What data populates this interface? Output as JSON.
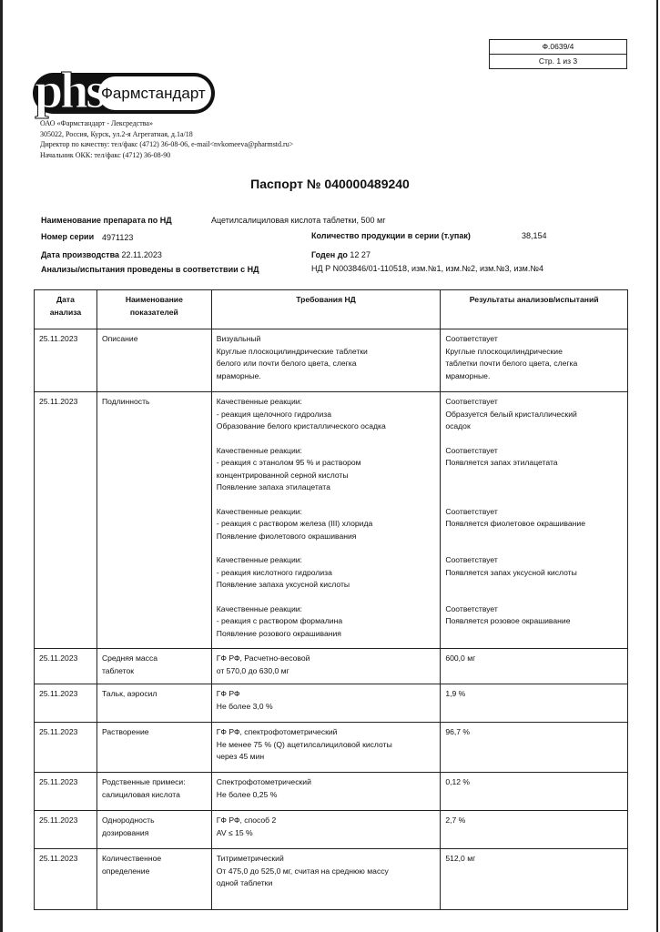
{
  "form": {
    "code": "Ф.0639/4",
    "page": "Стр. 1 из 3"
  },
  "logo": {
    "mark": "phs",
    "name": "Фармстандарт"
  },
  "company": {
    "lines": [
      "ОАО «Фармстандарт - Лексредства»",
      "305022, Россия, Курск, ул.2-я Агрегатная, д.1а/18",
      "Директор по качеству: тел/факс (4712) 36-08-06, e-mail<nvkomeeva@pharmstd.ru>",
      "Начальник ОКК: тел/факс (4712) 36-08-90"
    ]
  },
  "title": "Паспорт № 040000489240",
  "info": {
    "drug_label": "Наименование препарата по НД",
    "drug_value": "Ацетилсалициловая кислота таблетки, 500 мг",
    "series_label": "Номер серии",
    "series_value": "4971123",
    "qty_label": "Количество продукции в серии (т.упак)",
    "qty_value": "38,154",
    "prod_date_label": "Дата производства",
    "prod_date_value": "22.11.2023",
    "expiry_label": "Годен до",
    "expiry_value": "12 27",
    "nd_label": "Анализы/испытания проведены в соответствии с НД",
    "nd_value": "НД Р N003846/01-110518, изм.№1, изм.№2, изм.№3, изм.№4"
  },
  "table": {
    "headers": [
      "Дата\nанализа",
      "Наименование\nпоказателей",
      "Требования НД",
      "Результаты анализов/испытаний"
    ],
    "rows": [
      {
        "date": "25.11.2023",
        "name": [
          "Описание"
        ],
        "blocks": [
          {
            "req": [
              "Визуальный",
              "Круглые плоскоцилиндрические таблетки",
              "белого или почти белого цвета, слегка",
              "мраморные."
            ],
            "res": [
              "Соответствует",
              "Круглые плоскоцилиндрические",
              "таблетки почти белого цвета, слегка",
              "мраморные."
            ]
          }
        ]
      },
      {
        "date": "25.11.2023",
        "name": [
          "Подлинность"
        ],
        "blocks": [
          {
            "req": [
              "Качественные реакции:",
              "- реакция щелочного гидролиза",
              "Образование белого кристаллического осадка"
            ],
            "res": [
              "Соответствует",
              "Образуется белый кристаллический",
              "осадок"
            ]
          },
          {
            "req": [
              "Качественные реакции:",
              "- реакция с этанолом 95 % и раствором",
              "концентрированной серной кислоты",
              "Появление запаха этилацетата"
            ],
            "res": [
              "Соответствует",
              "Появляется запах этилацетата"
            ]
          },
          {
            "req": [
              "Качественные реакции:",
              "- реакция с раствором железа (III) хлорида",
              "Появление фиолетового окрашивания"
            ],
            "res": [
              "Соответствует",
              "Появляется фиолетовое окрашивание"
            ]
          },
          {
            "req": [
              "Качественные реакции:",
              "- реакция кислотного гидролиза",
              "Появление запаха уксусной кислоты"
            ],
            "res": [
              "Соответствует",
              "Появляется запах уксусной кислоты"
            ]
          },
          {
            "req": [
              "Качественные реакции:",
              "- реакция с раствором формалина",
              "Появление розового окрашивания"
            ],
            "res": [
              "Соответствует",
              "Появляется розовое окрашивание"
            ]
          }
        ]
      },
      {
        "date": "25.11.2023",
        "name": [
          "Средняя масса",
          "таблеток"
        ],
        "blocks": [
          {
            "req": [
              "ГФ РФ, Расчетно-весовой",
              "от 570,0 до 630,0 мг"
            ],
            "res": [
              "600,0 мг"
            ]
          }
        ]
      },
      {
        "date": "25.11.2023",
        "name": [
          "Тальк, аэросил"
        ],
        "blocks": [
          {
            "req": [
              "ГФ РФ",
              "Не более 3,0 %"
            ],
            "res": [
              "1,9 %"
            ]
          }
        ]
      },
      {
        "date": "25.11.2023",
        "name": [
          "Растворение"
        ],
        "blocks": [
          {
            "req": [
              "ГФ РФ, спектрофотометрический",
              "Не менее 75 % (Q) ацетилсалициловой кислоты",
              "через 45 мин"
            ],
            "res": [
              "96,7 %"
            ]
          }
        ]
      },
      {
        "date": "25.11.2023",
        "name": [
          "Родственные примеси:",
          "салициловая кислота"
        ],
        "blocks": [
          {
            "req": [
              "Спектрофотометрический",
              "Не более 0,25 %"
            ],
            "res": [
              "0,12 %"
            ]
          }
        ]
      },
      {
        "date": "25.11.2023",
        "name": [
          "Однородность",
          "дозирования"
        ],
        "blocks": [
          {
            "req": [
              "ГФ РФ, способ 2",
              "AV ≤ 15 %"
            ],
            "res": [
              "2,7 %"
            ]
          }
        ]
      },
      {
        "date": "25.11.2023",
        "name": [
          "Количественное",
          "определение"
        ],
        "blocks": [
          {
            "req": [
              "Титриметрический",
              "От 475,0 до 525,0 мг, считая на среднюю массу",
              "одной таблетки"
            ],
            "res": [
              "512,0 мг"
            ]
          }
        ]
      }
    ]
  }
}
